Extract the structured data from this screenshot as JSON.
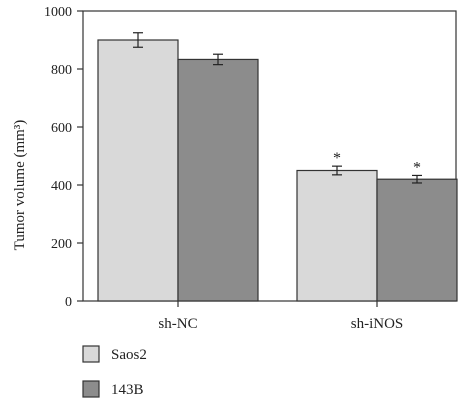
{
  "chart_data": {
    "type": "bar",
    "ylabel": "Tumor volume (mm³)",
    "xlabel": "",
    "ylim": [
      0,
      1000
    ],
    "yticks": [
      0,
      200,
      400,
      600,
      800,
      1000
    ],
    "grid": false,
    "legend_position": "bottom-left",
    "categories": [
      "sh-NC",
      "sh-iNOS"
    ],
    "series": [
      {
        "name": "Saos2",
        "color": "#d9d9d9",
        "values": [
          900,
          450
        ],
        "errors": [
          25,
          15
        ],
        "annotations": [
          "",
          "*"
        ]
      },
      {
        "name": "143B",
        "color": "#8c8c8c",
        "values": [
          833,
          420
        ],
        "errors": [
          18,
          13
        ],
        "annotations": [
          "",
          "*"
        ]
      }
    ]
  }
}
